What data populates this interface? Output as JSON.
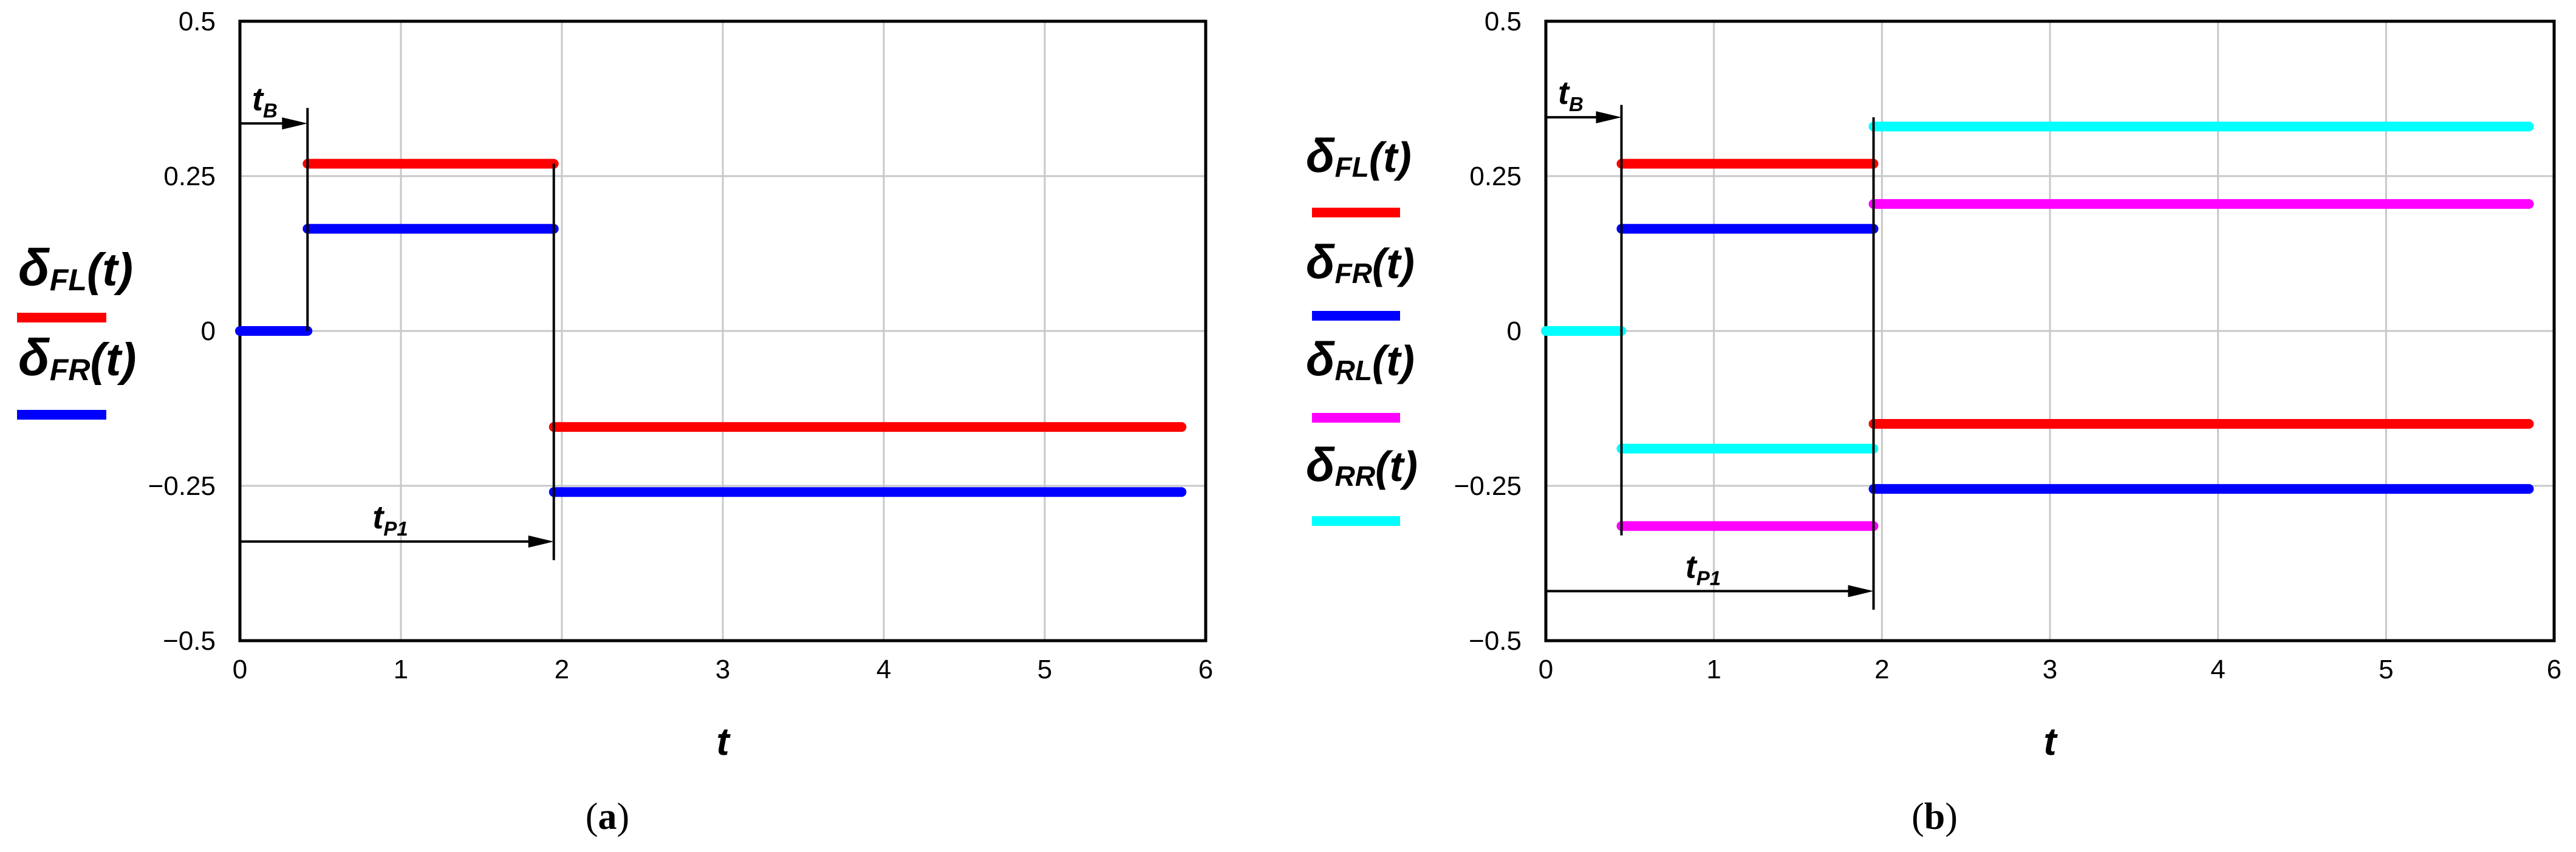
{
  "chart_data": [
    {
      "id": "a",
      "type": "line",
      "caption": {
        "open": "(",
        "letter": "a",
        "close": ")"
      },
      "xlabel": "t",
      "xlim": [
        0,
        6
      ],
      "ylim": [
        -0.5,
        0.5
      ],
      "xticks": [
        "0",
        "1",
        "2",
        "3",
        "4",
        "5",
        "6"
      ],
      "yticks": [
        {
          "value": 0.5,
          "label": "0.5"
        },
        {
          "value": 0.25,
          "label": "0.25"
        },
        {
          "value": 0,
          "label": "0"
        },
        {
          "value": -0.25,
          "label": "−0.25"
        },
        {
          "value": -0.5,
          "label": "−0.5"
        }
      ],
      "grid": true,
      "legend_position": "left",
      "series": [
        {
          "key": "fl",
          "symbol": "δ",
          "sub": "FL",
          "arg": "(t)",
          "color": "#ff0000",
          "segments": [
            [
              0.42,
              1.95,
              0.27
            ],
            [
              1.95,
              5.85,
              -0.155
            ]
          ]
        },
        {
          "key": "fr",
          "symbol": "δ",
          "sub": "FR",
          "arg": "(t)",
          "color": "#0000ff",
          "segments": [
            [
              0,
              0.42,
              0.0
            ],
            [
              0.42,
              1.95,
              0.165
            ],
            [
              1.95,
              5.85,
              -0.26
            ]
          ]
        }
      ],
      "markers": [
        {
          "x": 0.42,
          "y_from": 0.36,
          "y_to": 0.0
        },
        {
          "x": 1.95,
          "y_from": 0.27,
          "y_to": -0.37
        }
      ],
      "annotations": [
        {
          "main": "t",
          "sub": "B",
          "arrow_from": 0,
          "arrow_to": 0.42,
          "arrow_y": 0.335
        },
        {
          "main": "t",
          "sub": "P1",
          "arrow_from": 0,
          "arrow_to": 1.95,
          "arrow_y": -0.34
        }
      ]
    },
    {
      "id": "b",
      "type": "line",
      "caption": {
        "open": "(",
        "letter": "b",
        "close": ")"
      },
      "xlabel": "t",
      "xlim": [
        0,
        6
      ],
      "ylim": [
        -0.5,
        0.5
      ],
      "xticks": [
        "0",
        "1",
        "2",
        "3",
        "4",
        "5",
        "6"
      ],
      "yticks": [
        {
          "value": 0.5,
          "label": "0.5"
        },
        {
          "value": 0.25,
          "label": "0.25"
        },
        {
          "value": 0,
          "label": "0"
        },
        {
          "value": -0.25,
          "label": "−0.25"
        },
        {
          "value": -0.5,
          "label": "−0.5"
        }
      ],
      "grid": true,
      "legend_position": "left",
      "series": [
        {
          "key": "fl",
          "symbol": "δ",
          "sub": "FL",
          "arg": "(t)",
          "color": "#ff0000",
          "segments": [
            [
              0.45,
              1.95,
              0.27
            ],
            [
              1.95,
              5.85,
              -0.15
            ]
          ]
        },
        {
          "key": "fr",
          "symbol": "δ",
          "sub": "FR",
          "arg": "(t)",
          "color": "#0000ff",
          "segments": [
            [
              0.45,
              1.95,
              0.165
            ],
            [
              1.95,
              5.85,
              -0.255
            ]
          ]
        },
        {
          "key": "rl",
          "symbol": "δ",
          "sub": "RL",
          "arg": "(t)",
          "color": "#ff00ff",
          "segments": [
            [
              0.45,
              1.95,
              -0.315
            ],
            [
              1.95,
              5.85,
              0.205
            ]
          ]
        },
        {
          "key": "rr",
          "symbol": "δ",
          "sub": "RR",
          "arg": "(t)",
          "color": "#00ffff",
          "segments": [
            [
              0,
              0.45,
              0.0
            ],
            [
              0.45,
              1.95,
              -0.19
            ],
            [
              1.95,
              5.85,
              0.33
            ]
          ]
        }
      ],
      "markers": [
        {
          "x": 0.45,
          "y_from": 0.365,
          "y_to": -0.33
        },
        {
          "x": 1.95,
          "y_from": 0.345,
          "y_to": -0.45
        }
      ],
      "annotations": [
        {
          "main": "t",
          "sub": "B",
          "arrow_from": 0,
          "arrow_to": 0.45,
          "arrow_y": 0.345
        },
        {
          "main": "t",
          "sub": "P1",
          "arrow_from": 0,
          "arrow_to": 1.95,
          "arrow_y": -0.42
        }
      ]
    }
  ]
}
